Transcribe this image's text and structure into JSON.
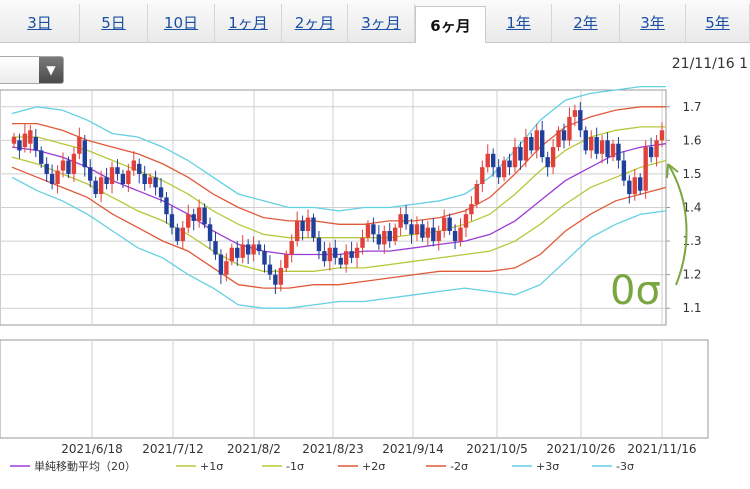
{
  "tabs": [
    {
      "label": "3日",
      "active": false
    },
    {
      "label": "5日",
      "active": false
    },
    {
      "label": "10日",
      "active": false
    },
    {
      "label": "1ヶ月",
      "active": false
    },
    {
      "label": "2ヶ月",
      "active": false
    },
    {
      "label": "3ヶ月",
      "active": false
    },
    {
      "label": "6ヶ月",
      "active": true
    },
    {
      "label": "1年",
      "active": false
    },
    {
      "label": "2年",
      "active": false
    },
    {
      "label": "3年",
      "active": false
    },
    {
      "label": "5年",
      "active": false
    }
  ],
  "header": {
    "date_label": "21/11/16 1"
  },
  "colors": {
    "up": "#e0413a",
    "down": "#1f3f9a",
    "sma": "#9b3bd6",
    "sigma1": "#b8c73a",
    "sigma2": "#e05a3a",
    "sigma3": "#63d0e3",
    "annotation": "#7aa640"
  },
  "chart_data": {
    "type": "candlestick",
    "y_ticks": [
      "1.7",
      "1.6",
      "1.5",
      "1.4",
      "1.3",
      "1.2",
      "1.1"
    ],
    "ylim": [
      1.05,
      1.75
    ],
    "x_ticks": [
      "2021/6/18",
      "2021/7/12",
      "2021/8/2",
      "2021/8/23",
      "2021/9/14",
      "2021/10/5",
      "2021/10/26",
      "2021/11/16"
    ],
    "sma": [
      1.58,
      1.57,
      1.55,
      1.52,
      1.48,
      1.45,
      1.42,
      1.38,
      1.33,
      1.29,
      1.27,
      1.26,
      1.26,
      1.26,
      1.27,
      1.27,
      1.28,
      1.29,
      1.3,
      1.32,
      1.36,
      1.42,
      1.48,
      1.52,
      1.56,
      1.58,
      1.59
    ],
    "sigma1_upper": [
      1.61,
      1.61,
      1.59,
      1.57,
      1.54,
      1.51,
      1.48,
      1.44,
      1.39,
      1.35,
      1.32,
      1.31,
      1.31,
      1.31,
      1.31,
      1.31,
      1.32,
      1.33,
      1.35,
      1.38,
      1.44,
      1.51,
      1.57,
      1.61,
      1.63,
      1.64,
      1.64
    ],
    "sigma1_lower": [
      1.55,
      1.53,
      1.5,
      1.47,
      1.43,
      1.39,
      1.36,
      1.32,
      1.27,
      1.23,
      1.21,
      1.21,
      1.21,
      1.22,
      1.22,
      1.23,
      1.24,
      1.25,
      1.26,
      1.27,
      1.3,
      1.35,
      1.41,
      1.46,
      1.49,
      1.52,
      1.54
    ],
    "sigma2_upper": [
      1.65,
      1.65,
      1.63,
      1.6,
      1.58,
      1.56,
      1.53,
      1.49,
      1.44,
      1.4,
      1.37,
      1.36,
      1.36,
      1.35,
      1.35,
      1.36,
      1.36,
      1.37,
      1.39,
      1.43,
      1.5,
      1.58,
      1.64,
      1.67,
      1.69,
      1.7,
      1.7
    ],
    "sigma2_lower": [
      1.52,
      1.49,
      1.46,
      1.43,
      1.38,
      1.34,
      1.3,
      1.27,
      1.22,
      1.17,
      1.16,
      1.16,
      1.17,
      1.17,
      1.18,
      1.19,
      1.2,
      1.21,
      1.21,
      1.21,
      1.22,
      1.26,
      1.33,
      1.38,
      1.42,
      1.44,
      1.46
    ],
    "sigma3_upper": [
      1.68,
      1.7,
      1.69,
      1.66,
      1.62,
      1.61,
      1.58,
      1.54,
      1.49,
      1.44,
      1.42,
      1.4,
      1.4,
      1.39,
      1.4,
      1.4,
      1.41,
      1.42,
      1.44,
      1.49,
      1.57,
      1.66,
      1.72,
      1.74,
      1.75,
      1.76,
      1.76
    ],
    "sigma3_lower": [
      1.49,
      1.45,
      1.42,
      1.38,
      1.33,
      1.28,
      1.25,
      1.2,
      1.16,
      1.11,
      1.1,
      1.1,
      1.11,
      1.12,
      1.12,
      1.13,
      1.14,
      1.15,
      1.16,
      1.15,
      1.14,
      1.17,
      1.24,
      1.31,
      1.35,
      1.38,
      1.39
    ],
    "candles": [
      [
        1.59,
        1.61
      ],
      [
        1.6,
        1.57
      ],
      [
        1.58,
        1.62
      ],
      [
        1.59,
        1.63
      ],
      [
        1.61,
        1.57
      ],
      [
        1.57,
        1.53
      ],
      [
        1.53,
        1.5
      ],
      [
        1.5,
        1.47
      ],
      [
        1.47,
        1.51
      ],
      [
        1.51,
        1.54
      ],
      [
        1.54,
        1.5
      ],
      [
        1.5,
        1.56
      ],
      [
        1.56,
        1.61
      ],
      [
        1.6,
        1.52
      ],
      [
        1.52,
        1.48
      ],
      [
        1.48,
        1.44
      ],
      [
        1.44,
        1.49
      ],
      [
        1.49,
        1.47
      ],
      [
        1.47,
        1.52
      ],
      [
        1.52,
        1.5
      ],
      [
        1.5,
        1.47
      ],
      [
        1.47,
        1.51
      ],
      [
        1.51,
        1.54
      ],
      [
        1.53,
        1.5
      ],
      [
        1.5,
        1.47
      ],
      [
        1.47,
        1.49
      ],
      [
        1.49,
        1.46
      ],
      [
        1.46,
        1.43
      ],
      [
        1.43,
        1.38
      ],
      [
        1.38,
        1.34
      ],
      [
        1.34,
        1.3
      ],
      [
        1.3,
        1.34
      ],
      [
        1.34,
        1.38
      ],
      [
        1.38,
        1.36
      ],
      [
        1.36,
        1.4
      ],
      [
        1.4,
        1.35
      ],
      [
        1.35,
        1.3
      ],
      [
        1.3,
        1.26
      ],
      [
        1.26,
        1.2
      ],
      [
        1.2,
        1.24
      ],
      [
        1.24,
        1.28
      ],
      [
        1.28,
        1.25
      ],
      [
        1.25,
        1.29
      ],
      [
        1.29,
        1.26
      ],
      [
        1.26,
        1.29
      ],
      [
        1.29,
        1.27
      ],
      [
        1.27,
        1.23
      ],
      [
        1.23,
        1.2
      ],
      [
        1.2,
        1.17
      ],
      [
        1.17,
        1.22
      ],
      [
        1.22,
        1.26
      ],
      [
        1.26,
        1.3
      ],
      [
        1.3,
        1.36
      ],
      [
        1.36,
        1.33
      ],
      [
        1.33,
        1.37
      ],
      [
        1.37,
        1.31
      ],
      [
        1.31,
        1.27
      ],
      [
        1.27,
        1.24
      ],
      [
        1.24,
        1.28
      ],
      [
        1.28,
        1.25
      ],
      [
        1.25,
        1.23
      ],
      [
        1.23,
        1.27
      ],
      [
        1.27,
        1.25
      ],
      [
        1.25,
        1.28
      ],
      [
        1.28,
        1.31
      ],
      [
        1.31,
        1.35
      ],
      [
        1.35,
        1.32
      ],
      [
        1.32,
        1.29
      ],
      [
        1.29,
        1.33
      ],
      [
        1.33,
        1.3
      ],
      [
        1.3,
        1.34
      ],
      [
        1.34,
        1.38
      ],
      [
        1.38,
        1.35
      ],
      [
        1.35,
        1.32
      ],
      [
        1.32,
        1.35
      ],
      [
        1.35,
        1.31
      ],
      [
        1.31,
        1.34
      ],
      [
        1.34,
        1.3
      ],
      [
        1.3,
        1.33
      ],
      [
        1.33,
        1.37
      ],
      [
        1.37,
        1.33
      ],
      [
        1.33,
        1.3
      ],
      [
        1.3,
        1.34
      ],
      [
        1.34,
        1.38
      ],
      [
        1.38,
        1.41
      ],
      [
        1.41,
        1.47
      ],
      [
        1.47,
        1.52
      ],
      [
        1.52,
        1.56
      ],
      [
        1.56,
        1.52
      ],
      [
        1.52,
        1.49
      ],
      [
        1.49,
        1.54
      ],
      [
        1.54,
        1.52
      ],
      [
        1.52,
        1.58
      ],
      [
        1.58,
        1.54
      ],
      [
        1.54,
        1.61
      ],
      [
        1.61,
        1.57
      ],
      [
        1.57,
        1.63
      ],
      [
        1.63,
        1.55
      ],
      [
        1.55,
        1.52
      ],
      [
        1.52,
        1.58
      ],
      [
        1.58,
        1.63
      ],
      [
        1.63,
        1.6
      ],
      [
        1.6,
        1.67
      ],
      [
        1.67,
        1.69
      ],
      [
        1.69,
        1.63
      ],
      [
        1.63,
        1.57
      ],
      [
        1.57,
        1.61
      ],
      [
        1.61,
        1.56
      ],
      [
        1.56,
        1.6
      ],
      [
        1.6,
        1.55
      ],
      [
        1.55,
        1.59
      ],
      [
        1.59,
        1.54
      ],
      [
        1.54,
        1.48
      ],
      [
        1.48,
        1.44
      ],
      [
        1.44,
        1.49
      ],
      [
        1.49,
        1.45
      ],
      [
        1.45,
        1.58
      ],
      [
        1.58,
        1.55
      ],
      [
        1.55,
        1.6
      ],
      [
        1.6,
        1.63
      ]
    ],
    "legend": [
      {
        "label": "単純移動平均（20）",
        "color": "sma"
      },
      {
        "label": "+1σ",
        "color": "sigma1"
      },
      {
        "label": "-1σ",
        "color": "sigma1"
      },
      {
        "label": "+2σ",
        "color": "sigma2"
      },
      {
        "label": "-2σ",
        "color": "sigma2"
      },
      {
        "label": "+3σ",
        "color": "sigma3"
      },
      {
        "label": "-3σ",
        "color": "sigma3"
      }
    ],
    "annotation": {
      "text": "0σ"
    }
  }
}
